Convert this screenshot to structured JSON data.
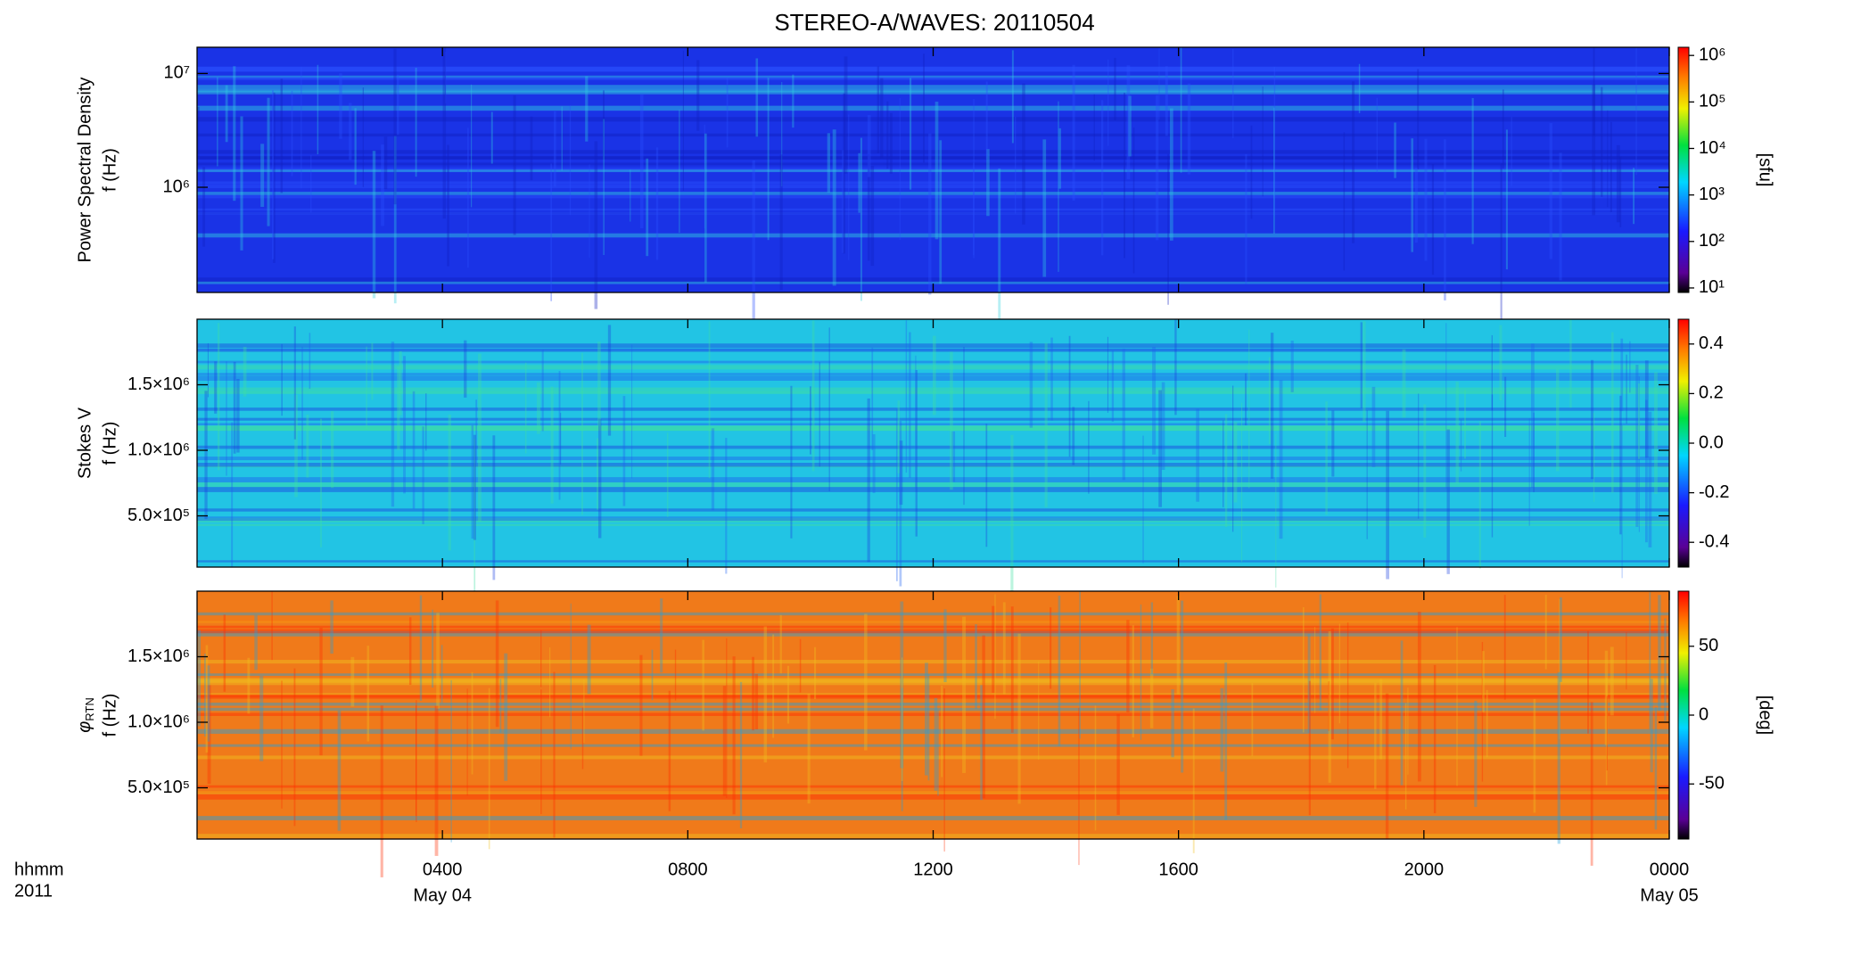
{
  "title": "STEREO-A/WAVES: 20110504",
  "x_axis": {
    "xlim": [
      0,
      24
    ],
    "xticks": [
      {
        "value": 4,
        "label": "0400"
      },
      {
        "value": 8,
        "label": "0800"
      },
      {
        "value": 12,
        "label": "1200"
      },
      {
        "value": 16,
        "label": "1600"
      },
      {
        "value": 20,
        "label": "2000"
      },
      {
        "value": 24,
        "label": "0000"
      }
    ],
    "date_labels": [
      {
        "value": 4,
        "label": "May 04"
      },
      {
        "value": 24,
        "label": "May 05"
      }
    ],
    "unit_label": "hhmm",
    "year_label": "2011"
  },
  "chart_data": [
    {
      "type": "heatmap",
      "ylabel": [
        "Power Spectral Density",
        "f (Hz)"
      ],
      "yscale": "log",
      "ylim": [
        119000,
        17000000
      ],
      "yticks": [
        {
          "value": 1000000,
          "label": "10⁶"
        },
        {
          "value": 10000000,
          "label": "10⁷"
        }
      ],
      "colormap": "rainbow",
      "background": "#1a33e6",
      "colorbar": {
        "scale": "log",
        "lim": [
          8,
          1500000
        ],
        "label": "[sfu]",
        "ticks": [
          {
            "value": 10,
            "label": "10¹"
          },
          {
            "value": 100,
            "label": "10²"
          },
          {
            "value": 1000,
            "label": "10³"
          },
          {
            "value": 10000,
            "label": "10⁴"
          },
          {
            "value": 100000,
            "label": "10⁵"
          },
          {
            "value": 1000000,
            "label": "10⁶"
          }
        ]
      }
    },
    {
      "type": "heatmap",
      "ylabel": [
        "Stokes V",
        "f (Hz)"
      ],
      "yscale": "linear",
      "ylim": [
        109000,
        2000000
      ],
      "yticks": [
        {
          "value": 500000,
          "label": "5.0×10⁵"
        },
        {
          "value": 1000000,
          "label": "1.0×10⁶"
        },
        {
          "value": 1500000,
          "label": "1.5×10⁶"
        }
      ],
      "colormap": "rainbow",
      "background": "#22c4e4",
      "colorbar": {
        "scale": "linear",
        "lim": [
          -0.5,
          0.5
        ],
        "label": null,
        "ticks": [
          -0.4,
          -0.2,
          {
            "value": 0,
            "label": "0.0"
          },
          0.2,
          0.4
        ]
      }
    },
    {
      "type": "heatmap",
      "ylabel": [
        "f (Hz)"
      ],
      "ylabel_symbol": "φ",
      "ylabel_subscript": "RTN",
      "yscale": "linear",
      "ylim": [
        109000,
        2000000
      ],
      "yticks": [
        {
          "value": 500000,
          "label": "5.0×10⁵"
        },
        {
          "value": 1000000,
          "label": "1.0×10⁶"
        },
        {
          "value": 1500000,
          "label": "1.5×10⁶"
        }
      ],
      "colormap": "rainbow",
      "background": "#f07a1a",
      "colorbar": {
        "scale": "linear",
        "lim": [
          -90,
          90
        ],
        "label": "[deg]",
        "ticks": [
          -50,
          0,
          50
        ]
      }
    }
  ]
}
